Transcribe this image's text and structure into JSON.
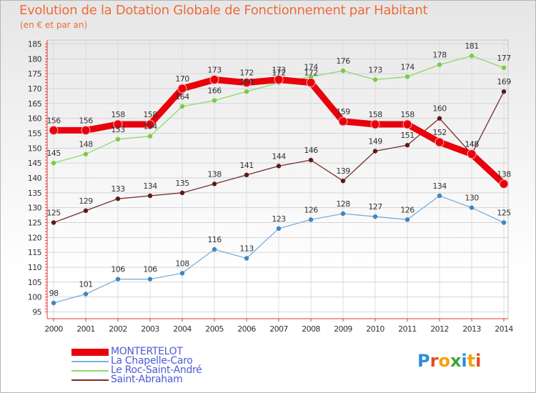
{
  "title": "Evolution de la Dotation Globale de Fonctionnement par Habitant",
  "subtitle": "(en € et par an)",
  "logo": {
    "text": "Proxiti",
    "colors": [
      "#2a8fd6",
      "#e24a26",
      "#f5a20a",
      "#3ba63a",
      "#2a8fd6",
      "#f5a20a",
      "#e24a26"
    ]
  },
  "chart_data": {
    "type": "line",
    "title": "Evolution de la Dotation Globale de Fonctionnement par Habitant",
    "ylabel": "(en € et par an)",
    "x": [
      "2000",
      "2001",
      "2002",
      "2003",
      "2004",
      "2005",
      "2006",
      "2007",
      "2008",
      "2009",
      "2010",
      "2011",
      "2012",
      "2013",
      "2014"
    ],
    "ylim": [
      95,
      185
    ],
    "yticks": [
      95,
      100,
      105,
      110,
      115,
      120,
      125,
      130,
      135,
      140,
      145,
      150,
      155,
      160,
      165,
      170,
      175,
      180,
      185
    ],
    "legend_position": "bottom-left",
    "series": [
      {
        "name": "MONTERTELOT",
        "color": "#e8000b",
        "marker_color": "#e8000b",
        "bold": true,
        "values": [
          156,
          156,
          158,
          158,
          170,
          173,
          172,
          173,
          172,
          159,
          158,
          158,
          152,
          148,
          138
        ]
      },
      {
        "name": "La Chapelle-Caro",
        "color": "#7aaedb",
        "marker_color": "#3e86c4",
        "bold": false,
        "values": [
          98,
          101,
          106,
          106,
          108,
          116,
          113,
          123,
          126,
          128,
          127,
          126,
          134,
          130,
          125
        ]
      },
      {
        "name": "Le Roc-Saint-André",
        "color": "#8ed86a",
        "marker_color": "#79cc45",
        "bold": false,
        "values": [
          145,
          148,
          153,
          154,
          164,
          166,
          169,
          172,
          174,
          176,
          173,
          174,
          178,
          181,
          177
        ]
      },
      {
        "name": "Saint-Abraham",
        "color": "#7a2d2d",
        "marker_color": "#5e1a1a",
        "bold": false,
        "values": [
          125,
          129,
          133,
          134,
          135,
          138,
          141,
          144,
          146,
          139,
          149,
          151,
          160,
          148,
          169
        ]
      }
    ]
  }
}
